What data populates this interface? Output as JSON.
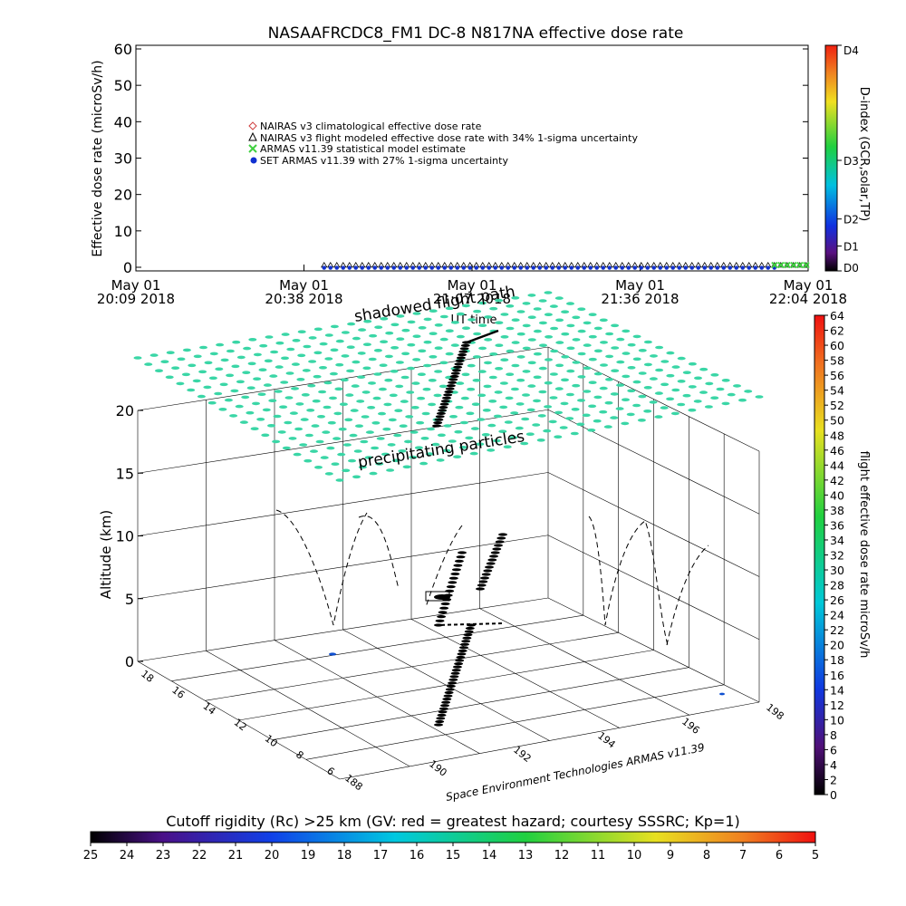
{
  "title": "NASAAFRCDC8_FM1 DC-8    N817NA effective dose rate",
  "chart_data": [
    {
      "type": "scatter",
      "title": "NASAAFRCDC8_FM1 DC-8    N817NA effective dose rate",
      "ylabel": "Effective dose rate (microSv/h)",
      "xlabel": "UT time",
      "ylim": [
        0,
        60
      ],
      "yticks": [
        "0",
        "10",
        "20",
        "30",
        "40",
        "50",
        "60"
      ],
      "xticks": [
        {
          "line1": "May 01",
          "line2": "20:09 2018"
        },
        {
          "line1": "May 01",
          "line2": "20:38 2018"
        },
        {
          "line1": "May 01",
          "line2": "21:07 2018"
        },
        {
          "line1": "May 01",
          "line2": "21:36 2018"
        },
        {
          "line1": "May 01",
          "line2": "22:04 2018"
        }
      ],
      "legend": [
        {
          "label": "NAIRAS v3 climatological effective dose rate",
          "marker": "diamond",
          "color": "#d04040"
        },
        {
          "label": "NAIRAS v3 flight modeled effective dose rate with 34% 1-sigma uncertainty",
          "marker": "triangle",
          "color": "#000000"
        },
        {
          "label": "ARMAS v11.39 statistical model estimate",
          "marker": "x",
          "color": "#40d040"
        },
        {
          "label": "SET ARMAS v11.39 with 27% 1-sigma uncertainty",
          "marker": "dot",
          "color": "#1030d0"
        }
      ],
      "series": [
        {
          "name": "NAIRAS v3 flight modeled effective dose rate with 34% 1-sigma uncertainty",
          "x_start_frac": 0.28,
          "x_end_frac": 1.0,
          "value": 0.3
        },
        {
          "name": "SET ARMAS v11.39 with 27% 1-sigma uncertainty",
          "x_start_frac": 0.28,
          "x_end_frac": 0.95,
          "value": 0.1
        },
        {
          "name": "ARMAS v11.39 statistical model estimate",
          "x_start_frac": 0.95,
          "x_end_frac": 1.0,
          "value": 0.6
        }
      ],
      "right_colorbar": {
        "label": "D-index (GCR,solar,TP)",
        "ticks": [
          "D0",
          "D1",
          "D2",
          "D3",
          "D4"
        ],
        "tick_fracs": [
          0.0,
          0.11,
          0.23,
          0.49,
          1.0
        ]
      }
    },
    {
      "type": "scatter",
      "subtype": "3d-flight-path",
      "annotations": [
        "shadowed flight path",
        "precipitating particles"
      ],
      "zlabel": "Altitude (km)",
      "zticks": [
        "0",
        "5",
        "10",
        "15",
        "20"
      ],
      "zlim": [
        0,
        20
      ],
      "left_axis_ticks": [
        "18",
        "16",
        "14",
        "12",
        "10",
        "8",
        "6"
      ],
      "right_axis_ticks": [
        "188",
        "190",
        "192",
        "194",
        "196",
        "198"
      ],
      "credit": "Space Environment Technologies ARMAS v11.39",
      "right_colorbar": {
        "label": "flight effective dose rate microSv/h",
        "ticks": [
          "0",
          "2",
          "4",
          "6",
          "8",
          "10",
          "12",
          "14",
          "16",
          "18",
          "20",
          "22",
          "24",
          "26",
          "28",
          "30",
          "32",
          "34",
          "36",
          "38",
          "40",
          "42",
          "44",
          "46",
          "48",
          "50",
          "52",
          "54",
          "56",
          "58",
          "60",
          "62",
          "64"
        ]
      },
      "bottom_colorbar": {
        "label": "Cutoff rigidity (Rc) >25 km (GV: red = greatest hazard; courtesy SSSRC; Kp=1)",
        "ticks": [
          "25",
          "24",
          "23",
          "22",
          "21",
          "20",
          "19",
          "18",
          "17",
          "16",
          "15",
          "14",
          "13",
          "12",
          "11",
          "10",
          "9",
          "8",
          "7",
          "6",
          "5"
        ]
      }
    }
  ],
  "colors": {
    "dose_marker": "#3ad6a6",
    "flight_path": "#000000",
    "axis": "#000000"
  }
}
